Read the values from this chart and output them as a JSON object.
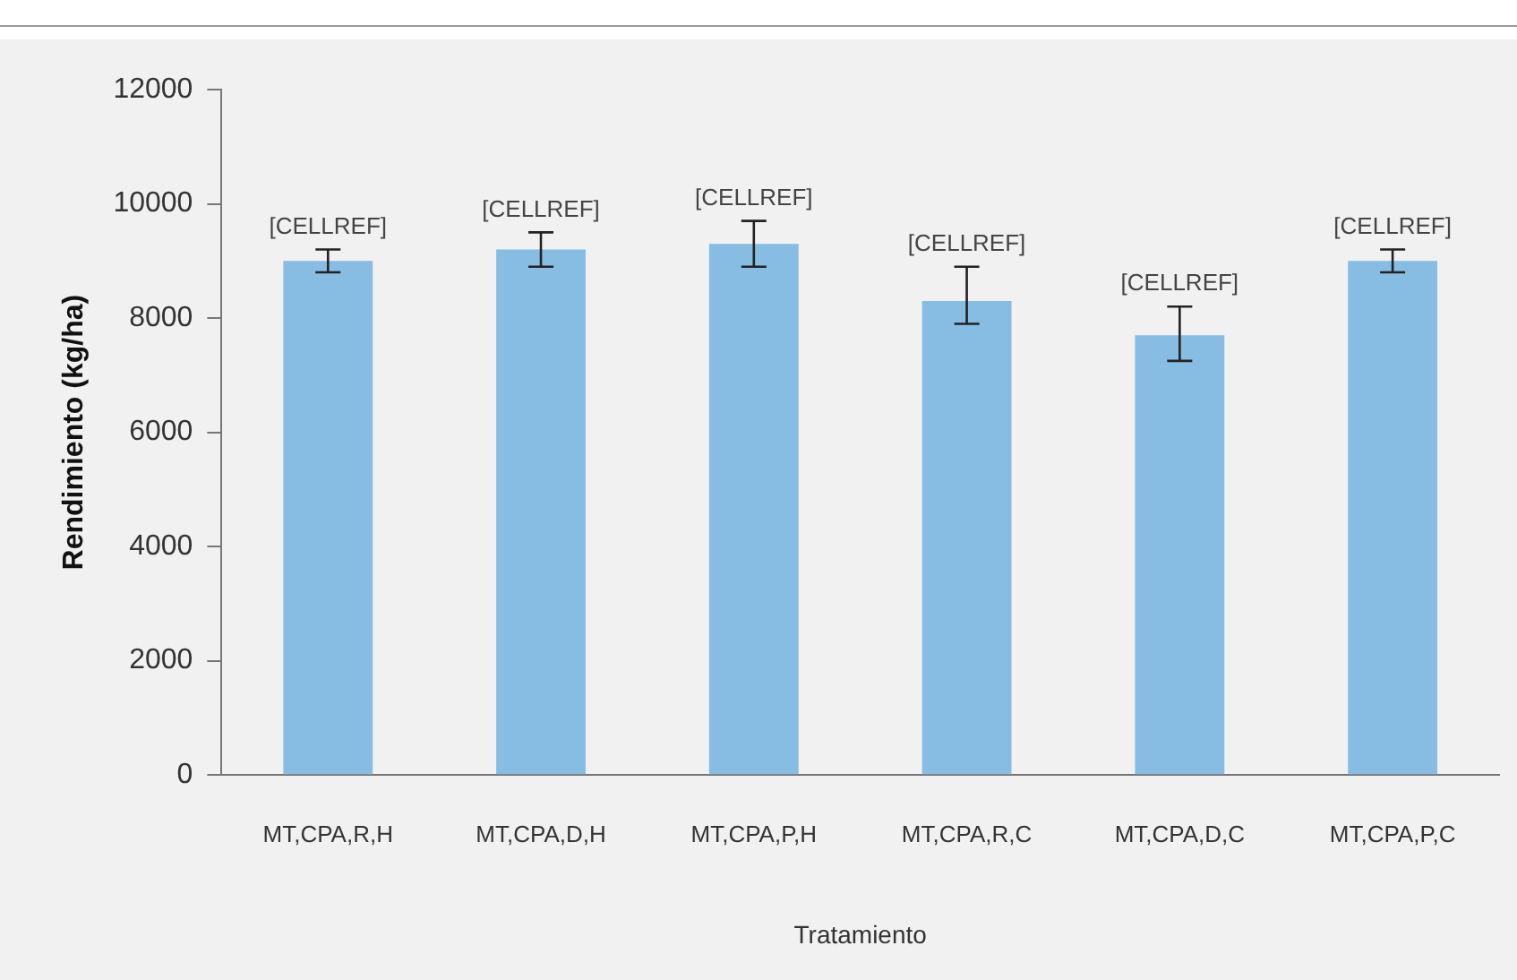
{
  "chart_data": {
    "type": "bar",
    "xlabel": "Tratamiento",
    "ylabel": "Rendimiento (kg/ha)",
    "categories": [
      "MT,CPA,R,H",
      "MT,CPA,D,H",
      "MT,CPA,P,H",
      "MT,CPA,R,C",
      "MT,CPA,D,C",
      "MT,CPA,P,C"
    ],
    "values": [
      9000,
      9200,
      9300,
      8300,
      7700,
      9000
    ],
    "errors": [
      200,
      300,
      400,
      [
        7900,
        8900
      ],
      [
        7250,
        8200
      ],
      200
    ],
    "value_labels": [
      "[CELLREF]",
      "[CELLREF]",
      "[CELLREF]",
      "[CELLREF]",
      "[CELLREF]",
      "[CELLREF]"
    ],
    "color": "#88bde3",
    "ylim": [
      0,
      12000
    ],
    "yticks": [
      0,
      2000,
      4000,
      6000,
      8000,
      10000,
      12000
    ],
    "grid": false,
    "legend": false
  }
}
